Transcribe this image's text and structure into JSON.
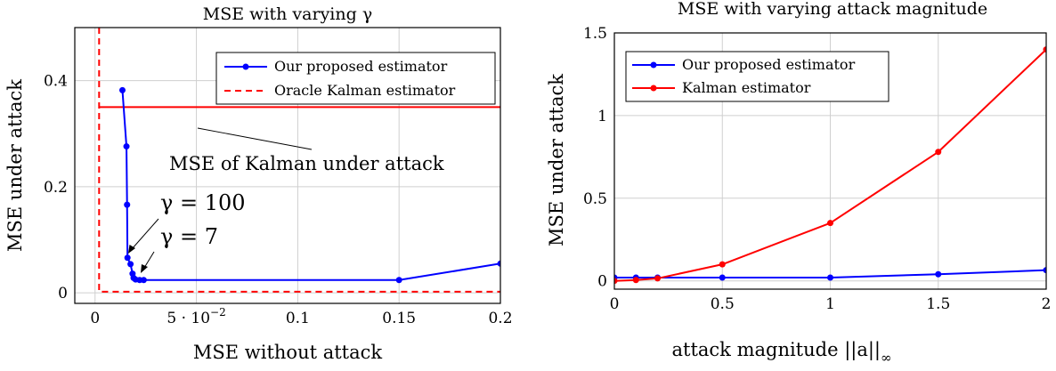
{
  "colors": {
    "blue": "#0000ff",
    "red": "#ff0000",
    "grid": "#cfcfcf"
  },
  "chart_data": [
    {
      "type": "line",
      "title": "MSE with varying γ",
      "xlabel": "MSE without attack",
      "ylabel": "MSE under attack",
      "xlim": [
        -0.01,
        0.2
      ],
      "ylim": [
        -0.02,
        0.5
      ],
      "xticks": [
        0,
        0.05,
        0.1,
        0.15,
        0.2
      ],
      "xtick_labels": [
        "0",
        "5 · 10",
        "0.1",
        "0.15",
        "0.2"
      ],
      "xtick_sup": "−2",
      "yticks": [
        0,
        0.2,
        0.4
      ],
      "ytick_labels": [
        "0",
        "0.2",
        "0.4"
      ],
      "grid": true,
      "legend_position": "top-right",
      "series": [
        {
          "name": "Our proposed estimator",
          "color": "#0000ff",
          "style": "solid-marker",
          "x": [
            0.0135,
            0.0155,
            0.0158,
            0.016,
            0.0175,
            0.0185,
            0.019,
            0.02,
            0.022,
            0.024,
            0.15,
            0.2
          ],
          "y": [
            0.382,
            0.276,
            0.166,
            0.066,
            0.054,
            0.036,
            0.028,
            0.025,
            0.024,
            0.024,
            0.024,
            0.055
          ]
        },
        {
          "name": "Oracle Kalman estimator",
          "color": "#ff0000",
          "style": "dashed",
          "x": [
            0.002,
            0.002,
            0.2
          ],
          "y": [
            0.5,
            0.002,
            0.002
          ]
        }
      ],
      "reference_line": {
        "color": "#ff0000",
        "y": 0.35,
        "x_from": 0.002,
        "x_to": 0.2
      },
      "annotations": {
        "kalman_label": "MSE of Kalman under attack",
        "gamma_100": "γ = 100",
        "gamma_7": "γ = 7"
      }
    },
    {
      "type": "line",
      "title": "MSE with varying attack magnitude",
      "xlabel": "attack magnitude ||a||",
      "xlabel_sub": "∞",
      "ylabel": "MSE under attack",
      "xlim": [
        0,
        2
      ],
      "ylim": [
        -0.05,
        1.5
      ],
      "xticks": [
        0,
        0.5,
        1,
        1.5,
        2
      ],
      "xtick_labels": [
        "0",
        "0.5",
        "1",
        "1.5",
        "2"
      ],
      "yticks": [
        0,
        0.5,
        1,
        1.5
      ],
      "ytick_labels": [
        "0",
        "0.5",
        "1",
        "1.5"
      ],
      "grid": true,
      "legend_position": "top-left",
      "series": [
        {
          "name": "Our proposed estimator",
          "color": "#0000ff",
          "x": [
            0,
            0.1,
            0.2,
            0.5,
            1,
            1.5,
            2
          ],
          "y": [
            0.02,
            0.02,
            0.02,
            0.02,
            0.02,
            0.04,
            0.065
          ]
        },
        {
          "name": "Kalman estimator",
          "color": "#ff0000",
          "x": [
            0,
            0.1,
            0.2,
            0.5,
            1,
            1.5,
            2
          ],
          "y": [
            0.0,
            0.005,
            0.015,
            0.1,
            0.35,
            0.78,
            1.4
          ]
        }
      ]
    }
  ]
}
